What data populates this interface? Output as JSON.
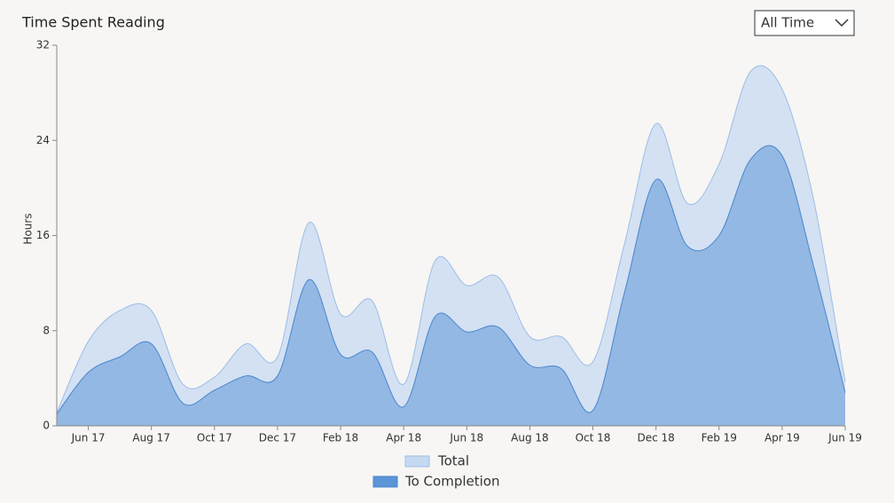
{
  "filter": "All Time",
  "chart_data": {
    "type": "area",
    "title": "Time Spent Reading",
    "y_label": "Hours",
    "categories": [
      null,
      "Jun 17",
      null,
      "Aug 17",
      null,
      "Oct 17",
      null,
      "Dec 17",
      null,
      "Feb 18",
      null,
      "Apr 18",
      null,
      "Jun 18",
      null,
      "Aug 18",
      null,
      "Oct 18",
      null,
      "Dec 18",
      null,
      "Feb 19",
      null,
      "Apr 19",
      null,
      "Jun 19"
    ],
    "series": [
      {
        "name": "Total",
        "color": "#d3e1f3",
        "line_color": "#9dbde6",
        "swatch": "#c5d9f1",
        "values": [
          1.1,
          7.1,
          9.7,
          9.7,
          3.5,
          4.1,
          6.9,
          5.8,
          17.1,
          9.4,
          10.5,
          3.5,
          13.9,
          11.8,
          12.5,
          7.5,
          7.5,
          5.4,
          15.3,
          25.4,
          18.7,
          22.0,
          29.8,
          28.3,
          19.0,
          3.7
        ]
      },
      {
        "name": "To Completion",
        "color": "#93b8e3",
        "line_color": "#4a85cc",
        "swatch": "#5b95d6",
        "values": [
          1.0,
          4.5,
          5.8,
          6.9,
          1.9,
          3.0,
          4.2,
          4.2,
          12.3,
          6.0,
          6.2,
          1.6,
          9.2,
          7.9,
          8.3,
          5.1,
          4.8,
          1.3,
          11.2,
          20.7,
          15.1,
          16.0,
          22.4,
          22.7,
          13.4,
          2.8
        ]
      }
    ],
    "ylim": [
      0,
      32
    ],
    "yticks": [
      0,
      8,
      16,
      24,
      32
    ]
  }
}
